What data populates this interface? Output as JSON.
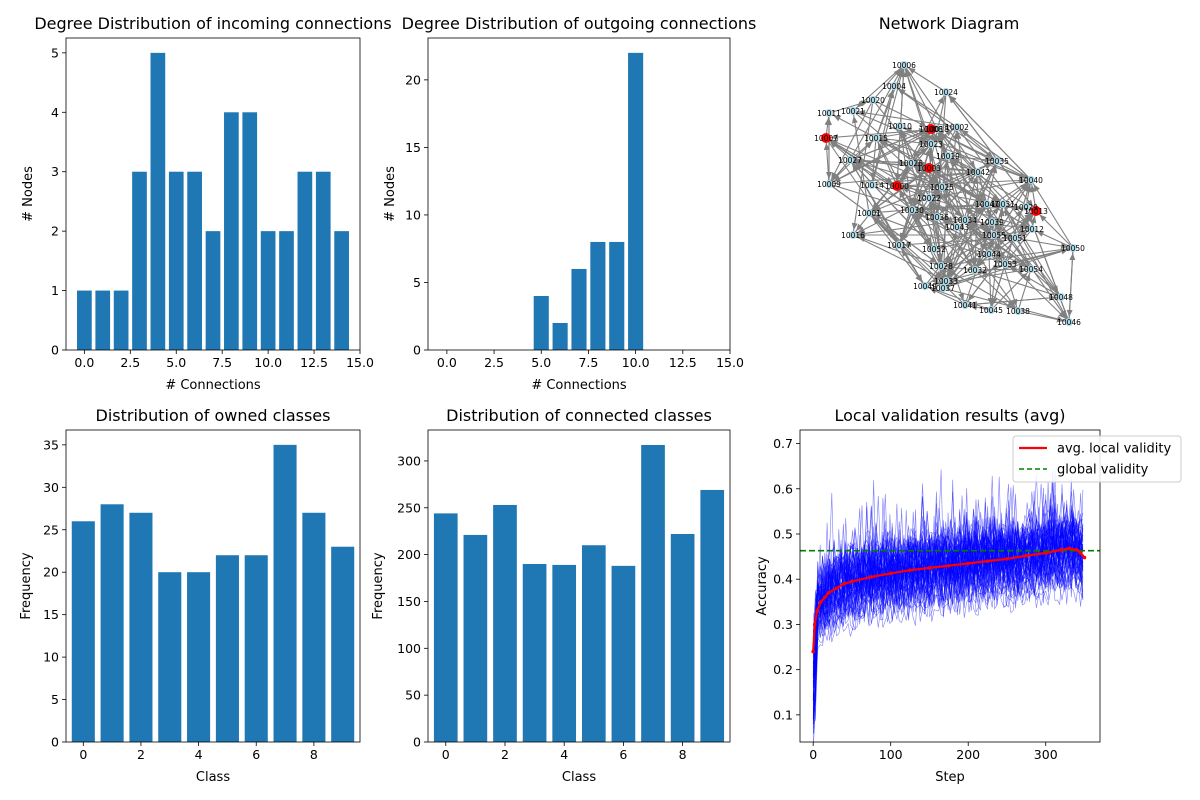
{
  "colors": {
    "bar": "#1f77b4",
    "node": "#add8e6",
    "highlight_node": "#ff0000",
    "edge": "#808080",
    "run_lines": "#0000ff",
    "avg_line": "#ff0000",
    "global_line": "#008000"
  },
  "chart_data": [
    {
      "type": "bar",
      "title": "Degree Distribution of incoming connections",
      "xlabel": "# Connections",
      "ylabel": "# Nodes",
      "xlim": [
        -1,
        15
      ],
      "ylim": [
        0,
        5.25
      ],
      "xticks": [
        "0.0",
        "2.5",
        "5.0",
        "7.5",
        "10.0",
        "12.5",
        "15.0"
      ],
      "yticks": [
        "0",
        "1",
        "2",
        "3",
        "4",
        "5"
      ],
      "x": [
        0,
        1,
        2,
        3,
        4,
        5,
        6,
        7,
        8,
        9,
        10,
        11,
        12,
        13,
        14
      ],
      "values": [
        1,
        1,
        1,
        3,
        5,
        3,
        3,
        2,
        4,
        4,
        2,
        2,
        3,
        3,
        2
      ]
    },
    {
      "type": "bar",
      "title": "Degree Distribution of outgoing connections",
      "xlabel": "# Connections",
      "ylabel": "# Nodes",
      "xlim": [
        -1,
        15
      ],
      "ylim": [
        0,
        23.1
      ],
      "xticks": [
        "0.0",
        "2.5",
        "5.0",
        "7.5",
        "10.0",
        "12.5",
        "15.0"
      ],
      "yticks": [
        "0",
        "5",
        "10",
        "15",
        "20"
      ],
      "x": [
        0,
        1,
        2,
        3,
        4,
        5,
        6,
        7,
        8,
        9,
        10,
        11,
        12,
        13,
        14
      ],
      "values": [
        0,
        0,
        0,
        0,
        0,
        4,
        2,
        6,
        8,
        8,
        22,
        0,
        0,
        0,
        0
      ]
    },
    {
      "type": "network",
      "title": "Network Diagram",
      "nodes": [
        "10006",
        "10004",
        "10024",
        "10020",
        "10011",
        "10021",
        "10018",
        "10008",
        "10002",
        "10007",
        "10015",
        "10023",
        "10027",
        "10026",
        "10003",
        "10019",
        "10035",
        "10042",
        "10009",
        "10014",
        "10000",
        "10025",
        "10022",
        "10040",
        "10047",
        "10031",
        "10029",
        "10013",
        "10001",
        "10030",
        "10036",
        "10034",
        "10039",
        "10043",
        "10012",
        "10016",
        "10055",
        "10051",
        "10050",
        "10017",
        "10052",
        "10044",
        "10053",
        "10028",
        "10032",
        "10054",
        "10033",
        "10049",
        "10037",
        "10010",
        "10048",
        "10041",
        "10045",
        "10038",
        "10046"
      ],
      "highlighted_nodes": [
        "10007",
        "10008",
        "10003",
        "10000",
        "10013"
      ]
    },
    {
      "type": "bar",
      "title": "Distribution of owned classes",
      "xlabel": "Class",
      "ylabel": "Frequency",
      "xlim": [
        -0.6,
        9.6
      ],
      "ylim": [
        0,
        36.75
      ],
      "xticks": [
        "0",
        "2",
        "4",
        "6",
        "8"
      ],
      "yticks": [
        "0",
        "5",
        "10",
        "15",
        "20",
        "25",
        "30",
        "35"
      ],
      "categories": [
        0,
        1,
        2,
        3,
        4,
        5,
        6,
        7,
        8,
        9
      ],
      "values": [
        26,
        28,
        27,
        20,
        20,
        22,
        22,
        35,
        27,
        23
      ]
    },
    {
      "type": "bar",
      "title": "Distribution of connected classes",
      "xlabel": "Class",
      "ylabel": "Frequency",
      "xlim": [
        -0.6,
        9.6
      ],
      "ylim": [
        0,
        333
      ],
      "xticks": [
        "0",
        "2",
        "4",
        "6",
        "8"
      ],
      "yticks": [
        "0",
        "50",
        "100",
        "150",
        "200",
        "250",
        "300"
      ],
      "categories": [
        0,
        1,
        2,
        3,
        4,
        5,
        6,
        7,
        8,
        9
      ],
      "values": [
        244,
        221,
        253,
        190,
        189,
        210,
        188,
        317,
        222,
        269
      ]
    },
    {
      "type": "line",
      "title": "Local validation results (avg)",
      "xlabel": "Step",
      "ylabel": "Accuracy",
      "xlim": [
        -17,
        370
      ],
      "ylim": [
        0.04,
        0.73
      ],
      "xticks": [
        "0",
        "100",
        "200",
        "300"
      ],
      "yticks": [
        "0.1",
        "0.2",
        "0.3",
        "0.4",
        "0.5",
        "0.6",
        "0.7"
      ],
      "legend_position": "top-right",
      "series": [
        {
          "name": "avg. local validity",
          "x": [
            0,
            2,
            5,
            10,
            15,
            20,
            30,
            40,
            50,
            75,
            100,
            125,
            150,
            175,
            200,
            225,
            250,
            275,
            300,
            320,
            330,
            340,
            345,
            350
          ],
          "values": [
            0.24,
            0.3,
            0.33,
            0.35,
            0.36,
            0.37,
            0.38,
            0.39,
            0.395,
            0.405,
            0.413,
            0.42,
            0.425,
            0.43,
            0.435,
            0.44,
            0.445,
            0.452,
            0.458,
            0.465,
            0.468,
            0.465,
            0.458,
            0.448
          ]
        },
        {
          "name": "global validity",
          "value": 0.463
        }
      ]
    }
  ]
}
